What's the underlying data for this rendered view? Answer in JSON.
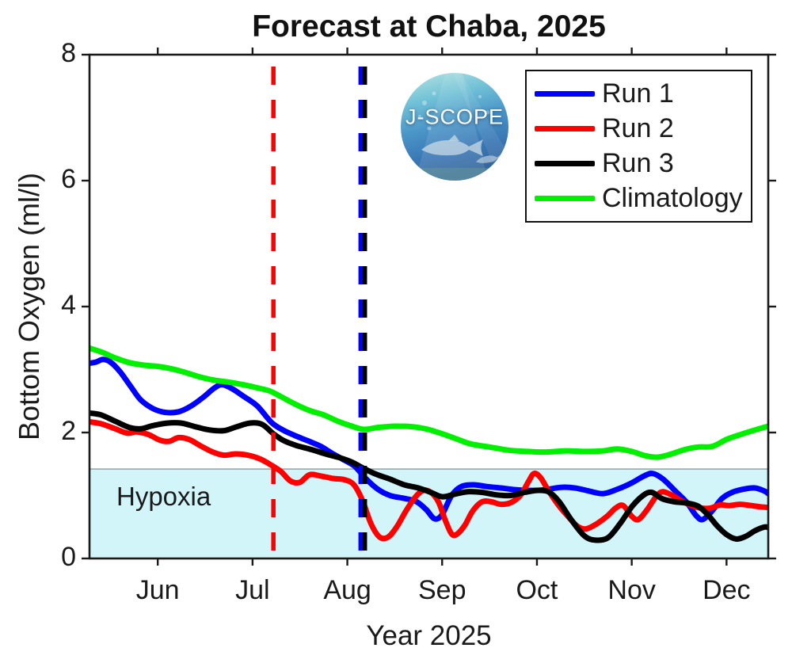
{
  "title": "Forecast at Chaba, 2025",
  "logo": {
    "text": "J-SCOPE"
  },
  "axes": {
    "x_label": "Year 2025",
    "y_label": "Bottom Oxygen (ml/l)",
    "x_ticks": [
      {
        "label": "Jun",
        "month": 6
      },
      {
        "label": "Jul",
        "month": 7
      },
      {
        "label": "Aug",
        "month": 8
      },
      {
        "label": "Sep",
        "month": 9
      },
      {
        "label": "Oct",
        "month": 10
      },
      {
        "label": "Nov",
        "month": 11
      },
      {
        "label": "Dec",
        "month": 12
      }
    ],
    "y_ticks": [
      0,
      2,
      4,
      6,
      8
    ],
    "y_range": [
      0,
      8
    ],
    "x_range_months": [
      5.28,
      12.44
    ]
  },
  "hypoxia": {
    "label": "Hypoxia",
    "threshold_mll": 1.42,
    "fill": "#d2f5f9",
    "edge": "#9bb0b2"
  },
  "legend": {
    "items": [
      {
        "label": "Run 1",
        "color": "#0000ff"
      },
      {
        "label": "Run 2",
        "color": "#ff0000"
      },
      {
        "label": "Run 3",
        "color": "#000000"
      },
      {
        "label": "Climatology",
        "color": "#00f000"
      }
    ]
  },
  "chart_data": {
    "type": "line",
    "title": "Forecast at Chaba, 2025",
    "xlabel": "Year 2025",
    "ylabel": "Bottom Oxygen (ml/l)",
    "ylim": [
      0,
      8
    ],
    "x_unit": "decimal month of 2025 (6.0 = Jun 1, 7.0 = Jul 1, ...)",
    "grid": false,
    "legend_position": "upper right",
    "annotations": {
      "hypoxia_threshold": 1.42,
      "hypoxia_label": "Hypoxia",
      "vlines": [
        {
          "name": "run2-start-line",
          "color": "#ff0000",
          "month": 7.22
        },
        {
          "name": "run1-start-line",
          "color": "#0000ff",
          "month": 8.14
        },
        {
          "name": "run3-start-line",
          "color": "#000000",
          "month": 8.185
        }
      ]
    },
    "series": [
      {
        "name": "Run 1",
        "color": "#0000ff",
        "points": [
          [
            5.28,
            3.1
          ],
          [
            5.35,
            3.12
          ],
          [
            5.42,
            3.16
          ],
          [
            5.5,
            3.12
          ],
          [
            5.6,
            2.97
          ],
          [
            5.72,
            2.72
          ],
          [
            5.82,
            2.52
          ],
          [
            5.95,
            2.38
          ],
          [
            6.08,
            2.32
          ],
          [
            6.22,
            2.33
          ],
          [
            6.35,
            2.42
          ],
          [
            6.48,
            2.56
          ],
          [
            6.6,
            2.71
          ],
          [
            6.68,
            2.76
          ],
          [
            6.78,
            2.7
          ],
          [
            6.9,
            2.58
          ],
          [
            7.05,
            2.42
          ],
          [
            7.2,
            2.16
          ],
          [
            7.32,
            2.04
          ],
          [
            7.45,
            1.95
          ],
          [
            7.58,
            1.87
          ],
          [
            7.72,
            1.78
          ],
          [
            7.85,
            1.66
          ],
          [
            7.97,
            1.56
          ],
          [
            8.08,
            1.46
          ],
          [
            8.2,
            1.26
          ],
          [
            8.32,
            1.1
          ],
          [
            8.45,
            1.0
          ],
          [
            8.58,
            0.96
          ],
          [
            8.72,
            0.91
          ],
          [
            8.83,
            0.78
          ],
          [
            8.92,
            0.63
          ],
          [
            9.0,
            0.7
          ],
          [
            9.1,
            1.0
          ],
          [
            9.2,
            1.14
          ],
          [
            9.33,
            1.17
          ],
          [
            9.48,
            1.14
          ],
          [
            9.62,
            1.12
          ],
          [
            9.78,
            1.09
          ],
          [
            9.92,
            1.08
          ],
          [
            10.08,
            1.09
          ],
          [
            10.25,
            1.13
          ],
          [
            10.4,
            1.12
          ],
          [
            10.55,
            1.07
          ],
          [
            10.7,
            1.03
          ],
          [
            10.85,
            1.1
          ],
          [
            11.0,
            1.2
          ],
          [
            11.13,
            1.31
          ],
          [
            11.22,
            1.35
          ],
          [
            11.33,
            1.26
          ],
          [
            11.46,
            1.07
          ],
          [
            11.58,
            0.89
          ],
          [
            11.68,
            0.68
          ],
          [
            11.75,
            0.62
          ],
          [
            11.85,
            0.76
          ],
          [
            11.95,
            0.95
          ],
          [
            12.06,
            1.05
          ],
          [
            12.18,
            1.1
          ],
          [
            12.3,
            1.12
          ],
          [
            12.4,
            1.07
          ],
          [
            12.44,
            1.03
          ]
        ]
      },
      {
        "name": "Run 2",
        "color": "#ff0000",
        "points": [
          [
            5.28,
            2.17
          ],
          [
            5.4,
            2.14
          ],
          [
            5.55,
            2.06
          ],
          [
            5.68,
            1.99
          ],
          [
            5.78,
            2.01
          ],
          [
            5.9,
            1.97
          ],
          [
            6.02,
            1.88
          ],
          [
            6.12,
            1.86
          ],
          [
            6.22,
            1.92
          ],
          [
            6.33,
            1.89
          ],
          [
            6.45,
            1.79
          ],
          [
            6.58,
            1.69
          ],
          [
            6.7,
            1.64
          ],
          [
            6.82,
            1.66
          ],
          [
            6.95,
            1.64
          ],
          [
            7.08,
            1.58
          ],
          [
            7.2,
            1.48
          ],
          [
            7.3,
            1.38
          ],
          [
            7.4,
            1.23
          ],
          [
            7.5,
            1.21
          ],
          [
            7.6,
            1.33
          ],
          [
            7.72,
            1.31
          ],
          [
            7.85,
            1.27
          ],
          [
            7.97,
            1.25
          ],
          [
            8.07,
            1.17
          ],
          [
            8.16,
            0.92
          ],
          [
            8.25,
            0.55
          ],
          [
            8.34,
            0.34
          ],
          [
            8.43,
            0.34
          ],
          [
            8.52,
            0.5
          ],
          [
            8.62,
            0.76
          ],
          [
            8.72,
            0.98
          ],
          [
            8.8,
            1.08
          ],
          [
            8.88,
            1.05
          ],
          [
            8.96,
            0.9
          ],
          [
            9.03,
            0.62
          ],
          [
            9.1,
            0.39
          ],
          [
            9.16,
            0.39
          ],
          [
            9.24,
            0.53
          ],
          [
            9.32,
            0.75
          ],
          [
            9.42,
            0.9
          ],
          [
            9.52,
            0.9
          ],
          [
            9.62,
            0.86
          ],
          [
            9.73,
            0.89
          ],
          [
            9.83,
            1.01
          ],
          [
            9.91,
            1.22
          ],
          [
            9.97,
            1.35
          ],
          [
            10.04,
            1.28
          ],
          [
            10.12,
            1.08
          ],
          [
            10.22,
            0.86
          ],
          [
            10.32,
            0.68
          ],
          [
            10.43,
            0.51
          ],
          [
            10.52,
            0.47
          ],
          [
            10.63,
            0.55
          ],
          [
            10.74,
            0.67
          ],
          [
            10.83,
            0.8
          ],
          [
            10.91,
            0.84
          ],
          [
            11.0,
            0.67
          ],
          [
            11.07,
            0.62
          ],
          [
            11.16,
            0.77
          ],
          [
            11.26,
            0.99
          ],
          [
            11.33,
            1.06
          ],
          [
            11.43,
            1.0
          ],
          [
            11.53,
            0.91
          ],
          [
            11.63,
            0.84
          ],
          [
            11.73,
            0.8
          ],
          [
            11.83,
            0.8
          ],
          [
            11.93,
            0.85
          ],
          [
            12.03,
            0.84
          ],
          [
            12.14,
            0.86
          ],
          [
            12.26,
            0.84
          ],
          [
            12.36,
            0.82
          ],
          [
            12.44,
            0.81
          ]
        ]
      },
      {
        "name": "Run 3",
        "color": "#000000",
        "points": [
          [
            5.28,
            2.31
          ],
          [
            5.4,
            2.28
          ],
          [
            5.55,
            2.18
          ],
          [
            5.7,
            2.08
          ],
          [
            5.82,
            2.06
          ],
          [
            5.95,
            2.11
          ],
          [
            6.1,
            2.15
          ],
          [
            6.25,
            2.15
          ],
          [
            6.4,
            2.09
          ],
          [
            6.55,
            2.04
          ],
          [
            6.7,
            2.03
          ],
          [
            6.83,
            2.09
          ],
          [
            6.97,
            2.15
          ],
          [
            7.1,
            2.13
          ],
          [
            7.22,
            1.98
          ],
          [
            7.33,
            1.87
          ],
          [
            7.47,
            1.79
          ],
          [
            7.62,
            1.73
          ],
          [
            7.77,
            1.66
          ],
          [
            7.92,
            1.6
          ],
          [
            8.05,
            1.53
          ],
          [
            8.16,
            1.44
          ],
          [
            8.3,
            1.34
          ],
          [
            8.45,
            1.26
          ],
          [
            8.6,
            1.17
          ],
          [
            8.75,
            1.12
          ],
          [
            8.88,
            1.05
          ],
          [
            9.0,
            0.98
          ],
          [
            9.13,
            1.02
          ],
          [
            9.27,
            1.06
          ],
          [
            9.42,
            1.05
          ],
          [
            9.57,
            1.01
          ],
          [
            9.72,
            1.0
          ],
          [
            9.87,
            1.05
          ],
          [
            10.0,
            1.08
          ],
          [
            10.12,
            1.06
          ],
          [
            10.23,
            0.91
          ],
          [
            10.36,
            0.62
          ],
          [
            10.5,
            0.36
          ],
          [
            10.62,
            0.29
          ],
          [
            10.75,
            0.33
          ],
          [
            10.88,
            0.56
          ],
          [
            11.0,
            0.82
          ],
          [
            11.12,
            1.0
          ],
          [
            11.21,
            1.05
          ],
          [
            11.32,
            0.95
          ],
          [
            11.45,
            0.9
          ],
          [
            11.58,
            0.88
          ],
          [
            11.7,
            0.83
          ],
          [
            11.8,
            0.7
          ],
          [
            11.9,
            0.52
          ],
          [
            12.0,
            0.38
          ],
          [
            12.1,
            0.31
          ],
          [
            12.2,
            0.35
          ],
          [
            12.3,
            0.44
          ],
          [
            12.4,
            0.5
          ],
          [
            12.44,
            0.49
          ]
        ]
      },
      {
        "name": "Climatology",
        "color": "#00f000",
        "points": [
          [
            5.28,
            3.34
          ],
          [
            5.42,
            3.27
          ],
          [
            5.56,
            3.18
          ],
          [
            5.7,
            3.11
          ],
          [
            5.85,
            3.07
          ],
          [
            6.0,
            3.05
          ],
          [
            6.15,
            3.01
          ],
          [
            6.3,
            2.95
          ],
          [
            6.45,
            2.88
          ],
          [
            6.6,
            2.83
          ],
          [
            6.75,
            2.8
          ],
          [
            6.9,
            2.76
          ],
          [
            7.05,
            2.71
          ],
          [
            7.18,
            2.66
          ],
          [
            7.3,
            2.57
          ],
          [
            7.45,
            2.45
          ],
          [
            7.6,
            2.35
          ],
          [
            7.75,
            2.28
          ],
          [
            7.9,
            2.18
          ],
          [
            8.05,
            2.1
          ],
          [
            8.18,
            2.05
          ],
          [
            8.32,
            2.08
          ],
          [
            8.5,
            2.1
          ],
          [
            8.7,
            2.09
          ],
          [
            8.85,
            2.05
          ],
          [
            9.0,
            1.98
          ],
          [
            9.15,
            1.9
          ],
          [
            9.3,
            1.82
          ],
          [
            9.5,
            1.77
          ],
          [
            9.7,
            1.72
          ],
          [
            9.9,
            1.7
          ],
          [
            10.1,
            1.69
          ],
          [
            10.3,
            1.71
          ],
          [
            10.5,
            1.7
          ],
          [
            10.7,
            1.71
          ],
          [
            10.85,
            1.74
          ],
          [
            11.0,
            1.7
          ],
          [
            11.15,
            1.63
          ],
          [
            11.28,
            1.61
          ],
          [
            11.42,
            1.66
          ],
          [
            11.56,
            1.73
          ],
          [
            11.7,
            1.77
          ],
          [
            11.85,
            1.78
          ],
          [
            12.0,
            1.89
          ],
          [
            12.15,
            1.97
          ],
          [
            12.3,
            2.04
          ],
          [
            12.44,
            2.1
          ]
        ]
      }
    ]
  }
}
